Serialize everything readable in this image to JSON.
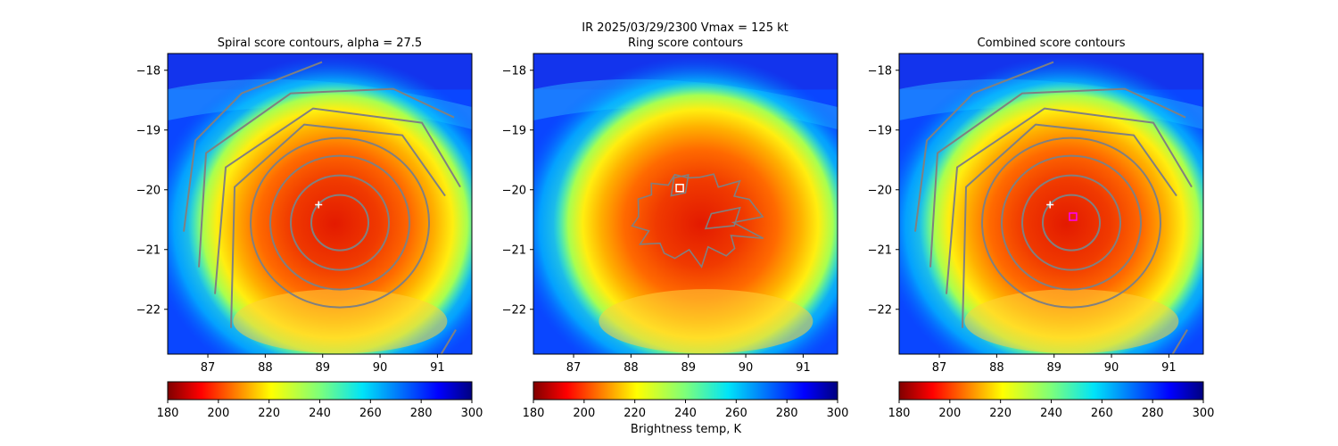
{
  "figure": {
    "suptitle_line1": "IR  2025/03/29/2300    Vmax = 125 kt",
    "colorbar_label": "Brightness temp, K"
  },
  "chart_data": [
    {
      "type": "heatmap",
      "title": "Spiral score contours, alpha = 27.5",
      "xlim": [
        86.3,
        91.6
      ],
      "ylim": [
        -22.75,
        -17.72
      ],
      "xticks": [
        87,
        88,
        89,
        90,
        91
      ],
      "yticks": [
        -18,
        -19,
        -20,
        -21,
        -22
      ],
      "colormap": "jet_r",
      "color_range": [
        180,
        300
      ],
      "colorbar_ticks": [
        180,
        200,
        220,
        240,
        260,
        280,
        300
      ],
      "contours": "spiral",
      "markers": [
        {
          "symbol": "plus",
          "x": 88.93,
          "y": -20.25,
          "color": "#ffffff"
        }
      ]
    },
    {
      "type": "heatmap",
      "title": "Ring score contours",
      "xlim": [
        86.3,
        91.6
      ],
      "ylim": [
        -22.75,
        -17.72
      ],
      "xticks": [
        87,
        88,
        89,
        90,
        91
      ],
      "yticks": [
        -18,
        -19,
        -20,
        -21,
        -22
      ],
      "colormap": "jet_r",
      "color_range": [
        180,
        300
      ],
      "colorbar_ticks": [
        180,
        200,
        220,
        240,
        260,
        280,
        300
      ],
      "contours": "ring",
      "markers": [
        {
          "symbol": "square",
          "x": 88.85,
          "y": -19.97,
          "color": "#ffffff"
        }
      ]
    },
    {
      "type": "heatmap",
      "title": "Combined score contours",
      "xlim": [
        86.3,
        91.6
      ],
      "ylim": [
        -22.75,
        -17.72
      ],
      "xticks": [
        87,
        88,
        89,
        90,
        91
      ],
      "yticks": [
        -18,
        -19,
        -20,
        -21,
        -22
      ],
      "colormap": "jet_r",
      "color_range": [
        180,
        300
      ],
      "colorbar_ticks": [
        180,
        200,
        220,
        240,
        260,
        280,
        300
      ],
      "contours": "spiral",
      "markers": [
        {
          "symbol": "plus",
          "x": 88.93,
          "y": -20.25,
          "color": "#ffffff"
        },
        {
          "symbol": "square",
          "x": 89.33,
          "y": -20.45,
          "color": "#ff00ff"
        }
      ]
    }
  ]
}
